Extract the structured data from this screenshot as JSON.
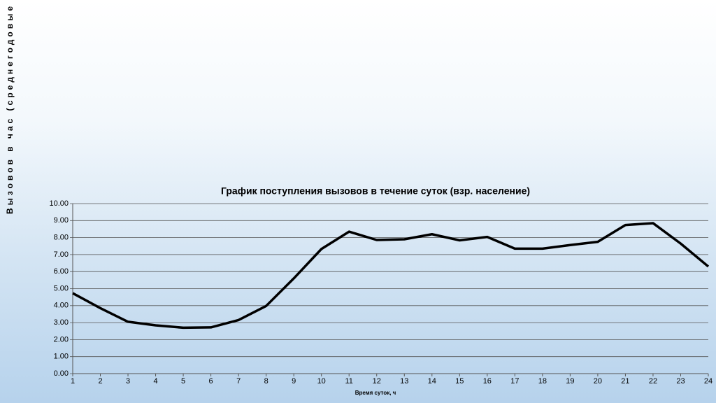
{
  "chart_data": {
    "type": "line",
    "title": "График поступления вызовов в течение суток (взр. население)",
    "x_label": "Время суток, ч",
    "y_label": "Вызовов в час (среднегодовые процент",
    "x": [
      1,
      2,
      3,
      4,
      5,
      6,
      7,
      8,
      9,
      10,
      11,
      12,
      13,
      14,
      15,
      16,
      17,
      18,
      19,
      20,
      21,
      22,
      23,
      24
    ],
    "series": [
      {
        "name": null,
        "color": "#000000",
        "values": [
          4.73,
          3.85,
          3.05,
          2.84,
          2.7,
          2.72,
          3.15,
          3.98,
          5.6,
          7.33,
          8.35,
          7.86,
          7.9,
          8.2,
          7.84,
          8.04,
          7.35,
          7.35,
          7.56,
          7.75,
          8.74,
          8.85,
          7.65,
          6.3
        ]
      }
    ],
    "xlim": [
      1,
      24
    ],
    "xticks": [
      1,
      2,
      3,
      4,
      5,
      6,
      7,
      8,
      9,
      10,
      11,
      12,
      13,
      14,
      15,
      16,
      17,
      18,
      19,
      20,
      21,
      22,
      23,
      24
    ],
    "ylim": [
      0,
      10
    ],
    "yticks": [
      {
        "value": 0,
        "label": "0.00"
      },
      {
        "value": 1,
        "label": "1.00"
      },
      {
        "value": 2,
        "label": "2.00"
      },
      {
        "value": 3,
        "label": "3.00"
      },
      {
        "value": 4,
        "label": "4.00"
      },
      {
        "value": 5,
        "label": "5.00"
      },
      {
        "value": 6,
        "label": "6.00"
      },
      {
        "value": 7,
        "label": "7.00"
      },
      {
        "value": 8,
        "label": "8.00"
      },
      {
        "value": 9,
        "label": "9.00"
      },
      {
        "value": 10,
        "label": "10.00"
      }
    ],
    "grid": true
  }
}
